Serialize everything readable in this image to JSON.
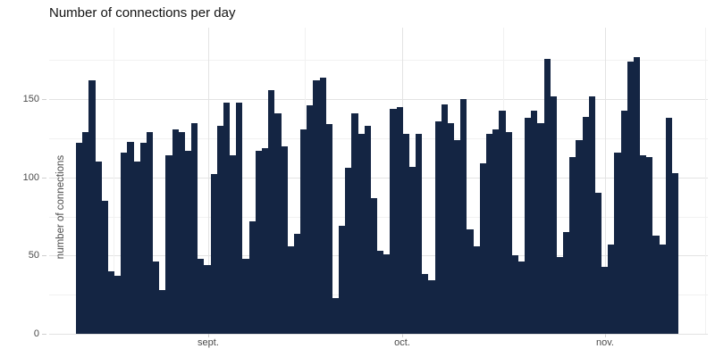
{
  "title": "Number of connections per day",
  "chart_data": {
    "type": "bar",
    "title": "Number of connections per day",
    "xlabel": "",
    "ylabel": "number of connections",
    "bar_color": "#142543",
    "grid": "on",
    "legend": "none",
    "ylim": [
      0,
      195.8
    ],
    "y_ticks": [
      0,
      50,
      100,
      150
    ],
    "y_minor_ticks": [
      25,
      75,
      125,
      175
    ],
    "x_ticks": [
      {
        "label": "sept.",
        "pos": 0.2415
      },
      {
        "label": "oct.",
        "pos": 0.536
      },
      {
        "label": "nov.",
        "pos": 0.844
      }
    ],
    "x_minor_tick_pos": [
      0.0977,
      0.388,
      0.689,
      0.996
    ],
    "values": [
      122,
      129,
      162,
      110,
      85,
      40,
      37,
      116,
      123,
      110,
      122,
      129,
      46,
      28,
      114,
      131,
      129,
      117,
      135,
      48,
      44,
      102,
      133,
      148,
      114,
      148,
      48,
      72,
      117,
      119,
      156,
      141,
      120,
      56,
      64,
      131,
      146,
      162,
      164,
      134,
      23,
      69,
      106,
      141,
      128,
      133,
      87,
      53,
      51,
      144,
      145,
      128,
      107,
      128,
      38,
      34,
      136,
      147,
      135,
      124,
      150,
      67,
      56,
      109,
      128,
      131,
      143,
      129,
      50,
      46,
      138,
      143,
      135,
      176,
      152,
      49,
      65,
      113,
      124,
      139,
      152,
      90,
      43,
      57,
      116,
      143,
      174,
      177,
      114,
      113,
      63,
      57,
      138,
      103
    ]
  }
}
